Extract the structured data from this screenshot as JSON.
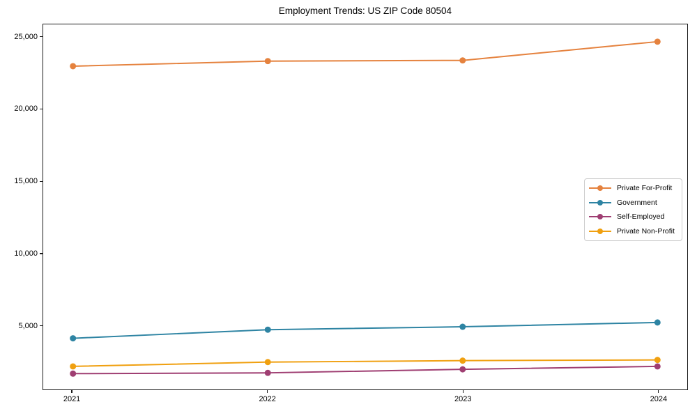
{
  "chart_data": {
    "type": "line",
    "title": "Employment Trends: US ZIP Code 80504",
    "xlabel": "",
    "ylabel": "",
    "x": [
      2021,
      2022,
      2023,
      2024
    ],
    "xtick_labels": [
      "2021",
      "2022",
      "2023",
      "2024"
    ],
    "series": [
      {
        "name": "Private For-Profit",
        "color": "#e5823e",
        "values": [
          23000,
          23350,
          23400,
          24700
        ]
      },
      {
        "name": "Government",
        "color": "#2e84a3",
        "values": [
          4100,
          4700,
          4900,
          5200
        ]
      },
      {
        "name": "Self-Employed",
        "color": "#9f3e72",
        "values": [
          1650,
          1700,
          1950,
          2150
        ]
      },
      {
        "name": "Private Non-Profit",
        "color": "#f0a010",
        "values": [
          2150,
          2450,
          2550,
          2600
        ]
      }
    ],
    "yticks": [
      5000,
      10000,
      15000,
      20000,
      25000
    ],
    "ytick_labels": [
      "5,000",
      "10,000",
      "15,000",
      "20,000",
      "25,000"
    ],
    "ylim": [
      550,
      25900
    ],
    "xlim": [
      2020.85,
      2024.15
    ],
    "grid": false,
    "legend_position": "center-right",
    "marker": "circle",
    "line_width": 2,
    "marker_radius": 4.5
  }
}
